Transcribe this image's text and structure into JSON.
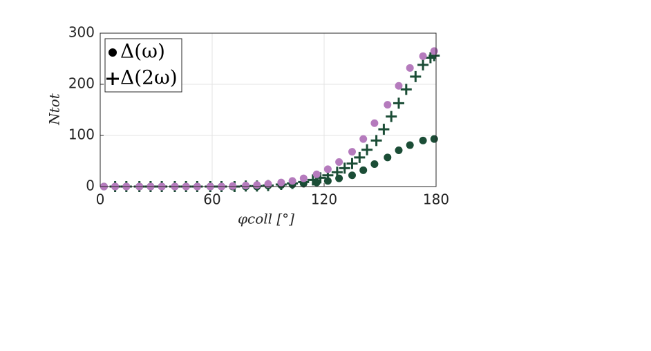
{
  "chart_data": {
    "type": "scatter",
    "x_label": "φcoll [°]",
    "y_label": "Ntot",
    "xlim": [
      0,
      180
    ],
    "ylim": [
      0,
      300
    ],
    "xticks": [
      0,
      60,
      120,
      180
    ],
    "yticks": [
      0,
      100,
      200,
      300
    ],
    "grid": true,
    "legend": "upper left",
    "series": [
      {
        "color": "#b57bbd",
        "marker": "o",
        "x": [
          2,
          8,
          14,
          21,
          27,
          33,
          40,
          46,
          52,
          59,
          65,
          71,
          78,
          84,
          90,
          97,
          103,
          109,
          116,
          122,
          128,
          135,
          141,
          147,
          154,
          160,
          166,
          173,
          179
        ],
        "values": [
          0,
          0,
          0,
          0,
          0,
          0,
          0,
          0,
          0,
          0,
          0,
          1,
          2,
          3,
          5,
          8,
          11,
          16,
          24,
          34,
          48,
          68,
          93,
          124,
          160,
          197,
          232,
          255,
          265
        ]
      },
      {
        "name": "Δ(ω)",
        "color": "#1b4d36",
        "marker": "o",
        "x": [
          2,
          8,
          14,
          21,
          27,
          33,
          40,
          46,
          52,
          59,
          65,
          71,
          78,
          84,
          90,
          97,
          103,
          109,
          116,
          122,
          128,
          135,
          141,
          147,
          154,
          160,
          166,
          173,
          179
        ],
        "values": [
          0,
          0,
          0,
          0,
          0,
          0,
          0,
          0,
          0,
          0,
          0,
          0,
          0,
          0,
          2,
          3,
          4,
          6,
          8,
          11,
          16,
          22,
          32,
          44,
          57,
          71,
          81,
          90,
          93
        ]
      },
      {
        "name": "Δ(2ω)",
        "color": "#1b4d36",
        "marker": "+",
        "x": [
          8,
          14,
          21,
          27,
          33,
          40,
          46,
          52,
          59,
          65,
          72,
          78,
          84,
          90,
          97,
          103,
          109,
          114,
          118,
          122,
          127,
          131,
          135,
          139,
          143,
          148,
          152,
          156,
          160,
          164,
          169,
          173,
          177,
          179
        ],
        "values": [
          0,
          0,
          0,
          0,
          0,
          0,
          0,
          0,
          0,
          0,
          0,
          1,
          1,
          2,
          4,
          6,
          9,
          13,
          17,
          22,
          28,
          36,
          45,
          57,
          72,
          90,
          112,
          137,
          163,
          190,
          215,
          238,
          252,
          256
        ]
      }
    ]
  }
}
